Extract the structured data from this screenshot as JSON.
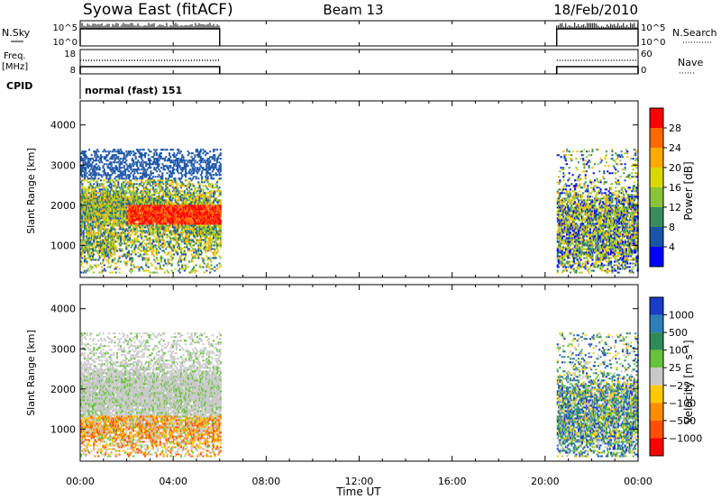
{
  "header": {
    "station": "Syowa East (fitACF)",
    "beam": "Beam 13",
    "date": "18/Feb/2010"
  },
  "panels": {
    "nsky": {
      "label": "N.Sky",
      "ticks": [
        "10^5",
        "10^0"
      ]
    },
    "nsearch": {
      "label": "N.Search",
      "ticks": [
        "10^5",
        "10^0"
      ]
    },
    "freq": {
      "label_line1": "Freq.",
      "label_line2": "[MHz]",
      "ticks": [
        "18",
        "8"
      ]
    },
    "nave": {
      "label": "Nave",
      "ticks": [
        "60",
        "0"
      ]
    },
    "cpid": {
      "label": "CPID",
      "value": "normal (fast) 151"
    }
  },
  "axes": {
    "x_label": "Time UT",
    "x_ticks": [
      "00:00",
      "04:00",
      "08:00",
      "12:00",
      "16:00",
      "20:00",
      "00:00"
    ],
    "y_label": "Slant Range [km]",
    "y_ticks": [
      "4000",
      "3000",
      "2000",
      "1000"
    ]
  },
  "colorbars": {
    "power": {
      "title": "Power [dB]",
      "labels": [
        "28",
        "24",
        "20",
        "16",
        "12",
        "8",
        "4"
      ],
      "colors": [
        "#ff0000",
        "#ff6a00",
        "#ffaa00",
        "#d8d800",
        "#88c43a",
        "#3a8c5c",
        "#1a54a8",
        "#0000ff"
      ]
    },
    "velocity": {
      "title": "Velocity [m s⁻¹]",
      "labels": [
        "1000",
        "500",
        "100",
        "25",
        "−25",
        "−100",
        "−500",
        "−1000"
      ],
      "colors": [
        "#1a3cc8",
        "#2c7fb8",
        "#2e8b57",
        "#66c33a",
        "#c8c8c8",
        "#ffc800",
        "#ff8c00",
        "#ff5000",
        "#ff0000"
      ]
    }
  },
  "chart_data": {
    "type": "heatmap",
    "x_unit": "hours UT",
    "xlim": [
      0,
      24
    ],
    "y_unit": "km",
    "ylim": [
      200,
      4600
    ],
    "observation_periods": [
      [
        0,
        6
      ],
      [
        20.5,
        24
      ]
    ]
  }
}
